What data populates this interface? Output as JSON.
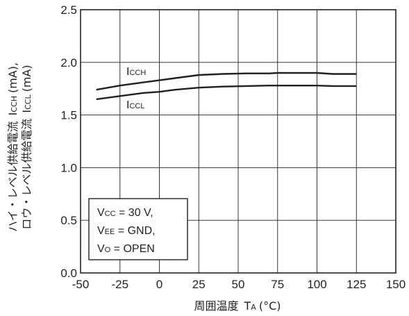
{
  "chart_data": {
    "type": "line",
    "xlabel": {
      "main": "周囲温度",
      "symbol": "T",
      "symbol_sub": "A",
      "unit": "(°C)"
    },
    "ylabel": {
      "line1": "ハイ・レベル供給電流",
      "line1_symbol": "I",
      "line1_sub": "CCH",
      "line1_unit": "(mA),",
      "line2": "ロウ・レベル供給電流",
      "line2_symbol": "I",
      "line2_sub": "CCL",
      "line2_unit": "(mA)"
    },
    "xlim": [
      -50,
      150
    ],
    "ylim": [
      0,
      2.5
    ],
    "x_ticks": [
      -50,
      -25,
      0,
      25,
      50,
      75,
      100,
      125,
      150
    ],
    "x_tick_labels": [
      "-50",
      "-25",
      "0",
      "25",
      "50",
      "75",
      "100",
      "125",
      "150"
    ],
    "y_ticks": [
      0,
      0.5,
      1.0,
      1.5,
      2.0,
      2.5
    ],
    "y_tick_labels": [
      "0.0",
      "0.5",
      "1.0",
      "1.5",
      "2.0",
      "2.5"
    ],
    "grid": true,
    "series": [
      {
        "name": "ICCH",
        "label_symbol": "I",
        "label_sub": "CCH",
        "x": [
          -40,
          -25,
          -10,
          0,
          10,
          25,
          40,
          55,
          70,
          75,
          90,
          100,
          110,
          125
        ],
        "y": [
          1.74,
          1.78,
          1.81,
          1.83,
          1.85,
          1.88,
          1.89,
          1.895,
          1.895,
          1.9,
          1.9,
          1.9,
          1.89,
          1.89
        ]
      },
      {
        "name": "ICCL",
        "label_symbol": "I",
        "label_sub": "CCL",
        "x": [
          -40,
          -25,
          -10,
          0,
          10,
          25,
          40,
          55,
          70,
          75,
          90,
          100,
          110,
          125
        ],
        "y": [
          1.65,
          1.68,
          1.71,
          1.72,
          1.74,
          1.76,
          1.77,
          1.775,
          1.78,
          1.78,
          1.78,
          1.78,
          1.775,
          1.775
        ]
      }
    ],
    "conditions": [
      {
        "sym": "V",
        "sub": "CC",
        "rest": " = 30 V,"
      },
      {
        "sym": "V",
        "sub": "EE",
        "rest": " = GND,"
      },
      {
        "sym": "V",
        "sub": "O",
        "rest": " = OPEN"
      }
    ]
  }
}
